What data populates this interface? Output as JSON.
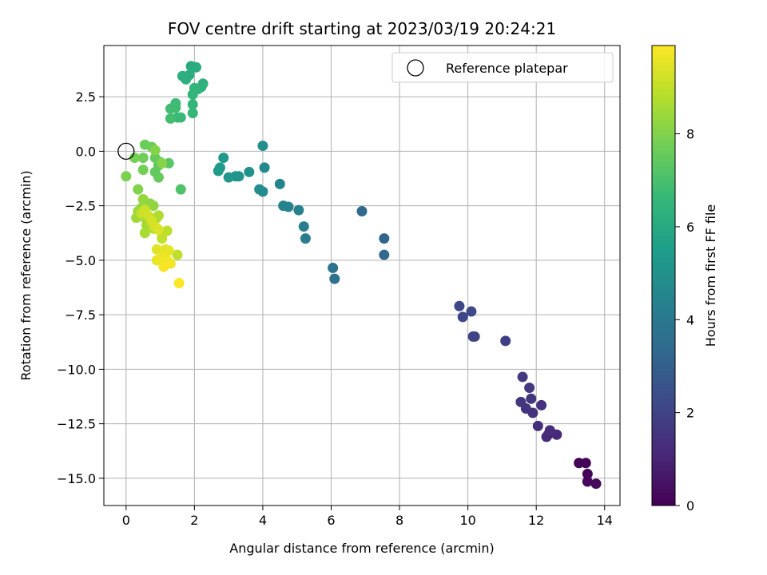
{
  "chart_data": {
    "type": "scatter",
    "title": "FOV centre drift starting at 2023/03/19 20:24:21",
    "xlabel": "Angular distance from reference (arcmin)",
    "ylabel": "Rotation from reference (arcmin)",
    "xlim": [
      -0.65,
      14.45
    ],
    "ylim": [
      -16.25,
      4.85
    ],
    "xticks": [
      0,
      2,
      4,
      6,
      8,
      10,
      12,
      14
    ],
    "xtick_labels": [
      "0",
      "2",
      "4",
      "6",
      "8",
      "10",
      "12",
      "14"
    ],
    "yticks": [
      2.5,
      0.0,
      -2.5,
      -5.0,
      -7.5,
      -10.0,
      -12.5,
      -15.0
    ],
    "ytick_labels": [
      "2.5",
      "0.0",
      "−2.5",
      "−5.0",
      "−7.5",
      "−10.0",
      "−12.5",
      "−15.0"
    ],
    "grid": true,
    "legend": {
      "position": "top-right",
      "label": "Reference platepar",
      "marker": "open-circle"
    },
    "reference_point": {
      "x": 0.0,
      "y": 0.0
    },
    "colorbar": {
      "label": "Hours from first FF file",
      "colormap": "viridis",
      "range": [
        0,
        9.9
      ],
      "ticks": [
        0,
        2,
        4,
        6,
        8
      ],
      "tick_labels": [
        "0",
        "2",
        "4",
        "6",
        "8"
      ]
    },
    "points": [
      {
        "x": 13.25,
        "y": -14.3,
        "c": 0.05
      },
      {
        "x": 13.45,
        "y": -14.3,
        "c": 0.1
      },
      {
        "x": 13.5,
        "y": -14.8,
        "c": 0.15
      },
      {
        "x": 13.5,
        "y": -15.15,
        "c": 0.2
      },
      {
        "x": 13.75,
        "y": -15.25,
        "c": 0.25
      },
      {
        "x": 12.6,
        "y": -13.0,
        "c": 1.1
      },
      {
        "x": 12.35,
        "y": -13.0,
        "c": 1.15
      },
      {
        "x": 12.3,
        "y": -13.1,
        "c": 1.2
      },
      {
        "x": 12.4,
        "y": -12.8,
        "c": 1.25
      },
      {
        "x": 12.05,
        "y": -12.6,
        "c": 1.3
      },
      {
        "x": 12.15,
        "y": -11.65,
        "c": 1.4
      },
      {
        "x": 11.9,
        "y": -12.0,
        "c": 1.45
      },
      {
        "x": 11.7,
        "y": -11.8,
        "c": 1.5
      },
      {
        "x": 11.55,
        "y": -11.5,
        "c": 1.55
      },
      {
        "x": 11.85,
        "y": -11.35,
        "c": 1.6
      },
      {
        "x": 11.8,
        "y": -10.85,
        "c": 1.65
      },
      {
        "x": 11.6,
        "y": -10.35,
        "c": 1.7
      },
      {
        "x": 11.1,
        "y": -8.7,
        "c": 1.85
      },
      {
        "x": 10.15,
        "y": -8.5,
        "c": 2.0
      },
      {
        "x": 10.2,
        "y": -8.5,
        "c": 2.05
      },
      {
        "x": 9.85,
        "y": -7.6,
        "c": 2.1
      },
      {
        "x": 9.75,
        "y": -7.1,
        "c": 2.15
      },
      {
        "x": 10.1,
        "y": -7.35,
        "c": 2.2
      },
      {
        "x": 7.55,
        "y": -4.0,
        "c": 3.2
      },
      {
        "x": 7.55,
        "y": -4.75,
        "c": 3.25
      },
      {
        "x": 6.9,
        "y": -2.75,
        "c": 3.4
      },
      {
        "x": 6.1,
        "y": -5.85,
        "c": 3.7
      },
      {
        "x": 6.05,
        "y": -5.35,
        "c": 3.75
      },
      {
        "x": 5.25,
        "y": -4.0,
        "c": 4.2
      },
      {
        "x": 5.2,
        "y": -3.45,
        "c": 4.25
      },
      {
        "x": 5.05,
        "y": -2.7,
        "c": 4.3
      },
      {
        "x": 4.75,
        "y": -2.55,
        "c": 4.4
      },
      {
        "x": 4.6,
        "y": -2.5,
        "c": 4.45
      },
      {
        "x": 4.5,
        "y": -1.5,
        "c": 4.5
      },
      {
        "x": 4.05,
        "y": -0.75,
        "c": 4.65
      },
      {
        "x": 4.0,
        "y": -1.85,
        "c": 4.75
      },
      {
        "x": 3.9,
        "y": -1.75,
        "c": 4.8
      },
      {
        "x": 4.0,
        "y": 0.25,
        "c": 4.9
      },
      {
        "x": 3.6,
        "y": -0.95,
        "c": 5.0
      },
      {
        "x": 3.3,
        "y": -1.15,
        "c": 5.1
      },
      {
        "x": 3.2,
        "y": -1.15,
        "c": 5.15
      },
      {
        "x": 3.0,
        "y": -1.2,
        "c": 5.2
      },
      {
        "x": 2.85,
        "y": -0.3,
        "c": 5.3
      },
      {
        "x": 2.75,
        "y": -0.75,
        "c": 5.35
      },
      {
        "x": 2.7,
        "y": -0.9,
        "c": 5.4
      },
      {
        "x": 1.9,
        "y": 3.9,
        "c": 6.0
      },
      {
        "x": 2.0,
        "y": 3.85,
        "c": 6.05
      },
      {
        "x": 2.05,
        "y": 3.85,
        "c": 6.1
      },
      {
        "x": 1.85,
        "y": 3.5,
        "c": 6.15
      },
      {
        "x": 1.75,
        "y": 3.3,
        "c": 6.2
      },
      {
        "x": 1.65,
        "y": 3.45,
        "c": 6.25
      },
      {
        "x": 2.25,
        "y": 3.1,
        "c": 6.3
      },
      {
        "x": 2.2,
        "y": 2.95,
        "c": 6.35
      },
      {
        "x": 2.1,
        "y": 2.85,
        "c": 6.4
      },
      {
        "x": 2.0,
        "y": 2.9,
        "c": 6.45
      },
      {
        "x": 1.95,
        "y": 2.6,
        "c": 6.5
      },
      {
        "x": 1.95,
        "y": 2.15,
        "c": 6.55
      },
      {
        "x": 1.95,
        "y": 1.75,
        "c": 6.6
      },
      {
        "x": 1.6,
        "y": 1.55,
        "c": 6.65
      },
      {
        "x": 1.5,
        "y": 1.55,
        "c": 6.7
      },
      {
        "x": 1.45,
        "y": 2.2,
        "c": 6.75
      },
      {
        "x": 1.45,
        "y": 2.0,
        "c": 6.8
      },
      {
        "x": 1.3,
        "y": 1.95,
        "c": 6.85
      },
      {
        "x": 1.3,
        "y": 1.5,
        "c": 6.9
      },
      {
        "x": 1.6,
        "y": -1.75,
        "c": 7.1
      },
      {
        "x": 1.25,
        "y": -0.55,
        "c": 7.3
      },
      {
        "x": 1.0,
        "y": -0.5,
        "c": 7.35
      },
      {
        "x": 0.95,
        "y": -0.65,
        "c": 7.4
      },
      {
        "x": 0.85,
        "y": -0.95,
        "c": 7.45
      },
      {
        "x": 0.95,
        "y": -1.2,
        "c": 7.5
      },
      {
        "x": 0.85,
        "y": -0.3,
        "c": 7.55
      },
      {
        "x": 0.75,
        "y": 0.2,
        "c": 7.6
      },
      {
        "x": 0.55,
        "y": 0.3,
        "c": 7.65
      },
      {
        "x": 0.5,
        "y": -0.3,
        "c": 7.7
      },
      {
        "x": 0.5,
        "y": -0.85,
        "c": 7.75
      },
      {
        "x": 0.25,
        "y": -0.3,
        "c": 7.8
      },
      {
        "x": 0.0,
        "y": -1.15,
        "c": 7.9
      },
      {
        "x": 0.35,
        "y": -1.75,
        "c": 8.0
      },
      {
        "x": 0.85,
        "y": 0.05,
        "c": 8.05
      },
      {
        "x": 1.05,
        "y": -0.55,
        "c": 8.1
      },
      {
        "x": 0.7,
        "y": -2.4,
        "c": 8.2
      },
      {
        "x": 0.8,
        "y": -2.5,
        "c": 8.25
      },
      {
        "x": 0.5,
        "y": -2.2,
        "c": 8.3
      },
      {
        "x": 0.45,
        "y": -2.6,
        "c": 8.35
      },
      {
        "x": 0.35,
        "y": -2.75,
        "c": 8.4
      },
      {
        "x": 0.3,
        "y": -3.05,
        "c": 8.45
      },
      {
        "x": 0.55,
        "y": -3.05,
        "c": 8.5
      },
      {
        "x": 0.6,
        "y": -3.4,
        "c": 8.55
      },
      {
        "x": 0.55,
        "y": -3.75,
        "c": 8.6
      },
      {
        "x": 0.9,
        "y": -3.05,
        "c": 8.65
      },
      {
        "x": 0.95,
        "y": -2.95,
        "c": 8.7
      },
      {
        "x": 0.75,
        "y": -3.35,
        "c": 8.75
      },
      {
        "x": 0.8,
        "y": -3.55,
        "c": 8.8
      },
      {
        "x": 1.05,
        "y": -3.75,
        "c": 8.85
      },
      {
        "x": 1.2,
        "y": -3.65,
        "c": 8.9
      },
      {
        "x": 1.5,
        "y": -4.75,
        "c": 8.95
      },
      {
        "x": 1.05,
        "y": -4.0,
        "c": 9.0
      },
      {
        "x": 0.45,
        "y": -2.85,
        "c": 9.1
      },
      {
        "x": 0.55,
        "y": -2.7,
        "c": 9.15
      },
      {
        "x": 0.65,
        "y": -2.95,
        "c": 9.2
      },
      {
        "x": 0.75,
        "y": -3.2,
        "c": 9.25
      },
      {
        "x": 0.85,
        "y": -3.45,
        "c": 9.3
      },
      {
        "x": 0.95,
        "y": -3.6,
        "c": 9.35
      },
      {
        "x": 0.9,
        "y": -4.5,
        "c": 9.45
      },
      {
        "x": 1.15,
        "y": -4.5,
        "c": 9.5
      },
      {
        "x": 1.25,
        "y": -4.55,
        "c": 9.55
      },
      {
        "x": 0.9,
        "y": -5.0,
        "c": 9.6
      },
      {
        "x": 1.05,
        "y": -4.85,
        "c": 9.65
      },
      {
        "x": 1.2,
        "y": -5.0,
        "c": 9.7
      },
      {
        "x": 1.3,
        "y": -5.15,
        "c": 9.75
      },
      {
        "x": 1.1,
        "y": -5.3,
        "c": 9.8
      },
      {
        "x": 1.55,
        "y": -6.05,
        "c": 9.9
      }
    ]
  }
}
